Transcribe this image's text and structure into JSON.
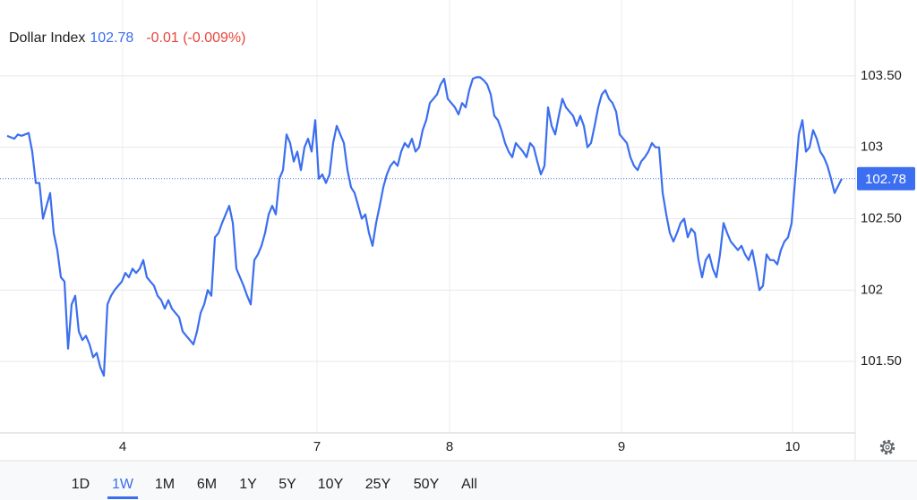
{
  "chart_data": {
    "type": "line",
    "title": "Dollar Index",
    "last_value": 102.78,
    "change_label": "-0.01 (-0.009%)",
    "series": [
      {
        "name": "Dollar Index",
        "color": "#3b6ef0",
        "values": [
          103.08,
          103.07,
          103.06,
          103.09,
          103.08,
          103.09,
          103.1,
          102.97,
          102.75,
          102.75,
          102.5,
          102.59,
          102.68,
          102.4,
          102.28,
          102.09,
          102.06,
          101.59,
          101.9,
          101.96,
          101.71,
          101.65,
          101.68,
          101.62,
          101.53,
          101.56,
          101.46,
          101.4,
          101.9,
          101.96,
          102.0,
          102.03,
          102.06,
          102.12,
          102.09,
          102.15,
          102.12,
          102.15,
          102.21,
          102.09,
          102.06,
          102.03,
          101.96,
          101.93,
          101.87,
          101.93,
          101.87,
          101.84,
          101.81,
          101.71,
          101.68,
          101.65,
          101.62,
          101.71,
          101.84,
          101.9,
          102.0,
          101.96,
          102.37,
          102.4,
          102.47,
          102.53,
          102.59,
          102.47,
          102.15,
          102.09,
          102.03,
          101.96,
          101.9,
          102.21,
          102.25,
          102.31,
          102.4,
          102.53,
          102.59,
          102.53,
          102.78,
          102.84,
          103.09,
          103.03,
          102.9,
          102.97,
          102.84,
          103.0,
          103.06,
          102.97,
          103.19,
          102.78,
          102.81,
          102.75,
          102.81,
          103.03,
          103.15,
          103.09,
          103.03,
          102.84,
          102.72,
          102.68,
          102.59,
          102.5,
          102.53,
          102.4,
          102.31,
          102.47,
          102.59,
          102.72,
          102.81,
          102.87,
          102.9,
          102.87,
          102.97,
          103.03,
          103.0,
          103.06,
          102.97,
          103.0,
          103.12,
          103.19,
          103.31,
          103.34,
          103.37,
          103.44,
          103.48,
          103.34,
          103.31,
          103.28,
          103.23,
          103.31,
          103.28,
          103.4,
          103.48,
          103.49,
          103.49,
          103.47,
          103.44,
          103.37,
          103.22,
          103.19,
          103.12,
          103.03,
          102.97,
          102.93,
          103.03,
          103.0,
          102.97,
          102.93,
          103.03,
          103.0,
          102.9,
          102.81,
          102.87,
          103.28,
          103.15,
          103.09,
          103.22,
          103.34,
          103.28,
          103.25,
          103.22,
          103.15,
          103.22,
          103.15,
          103.0,
          103.03,
          103.15,
          103.28,
          103.37,
          103.4,
          103.34,
          103.31,
          103.25,
          103.09,
          103.06,
          103.03,
          102.93,
          102.87,
          102.84,
          102.9,
          102.93,
          102.97,
          103.03,
          103.0,
          103.0,
          102.68,
          102.53,
          102.4,
          102.34,
          102.4,
          102.47,
          102.5,
          102.37,
          102.43,
          102.4,
          102.21,
          102.09,
          102.21,
          102.25,
          102.15,
          102.09,
          102.25,
          102.47,
          102.4,
          102.34,
          102.31,
          102.28,
          102.31,
          102.25,
          102.21,
          102.28,
          102.15,
          102.0,
          102.03,
          102.25,
          102.21,
          102.21,
          102.18,
          102.28,
          102.34,
          102.37,
          102.47,
          102.78,
          103.09,
          103.19,
          102.97,
          103.0,
          103.12,
          103.06,
          102.97,
          102.93,
          102.87,
          102.78,
          102.68,
          102.73,
          102.78
        ]
      }
    ],
    "ylim": [
      101,
      104
    ],
    "yticks": [
      {
        "value": 103.5,
        "label": "103.50"
      },
      103,
      {
        "value": 102.5,
        "label": "102.50"
      },
      102,
      {
        "value": 101.5,
        "label": "101.50"
      }
    ],
    "xlim": [
      0,
      236.75
    ],
    "xticks": [
      {
        "value": 32.25,
        "label": "4"
      },
      {
        "value": 86.5,
        "label": "7"
      },
      {
        "value": 123.5,
        "label": "8"
      },
      {
        "value": 171.5,
        "label": "9"
      },
      {
        "value": 219.25,
        "label": "10"
      }
    ],
    "grid": true,
    "ranges": [
      "1D",
      "1W",
      "1M",
      "6M",
      "1Y",
      "5Y",
      "10Y",
      "25Y",
      "50Y",
      "All"
    ],
    "selected_range": 1,
    "up_color": "#3b6ef0",
    "down_color": "#e8453c"
  }
}
